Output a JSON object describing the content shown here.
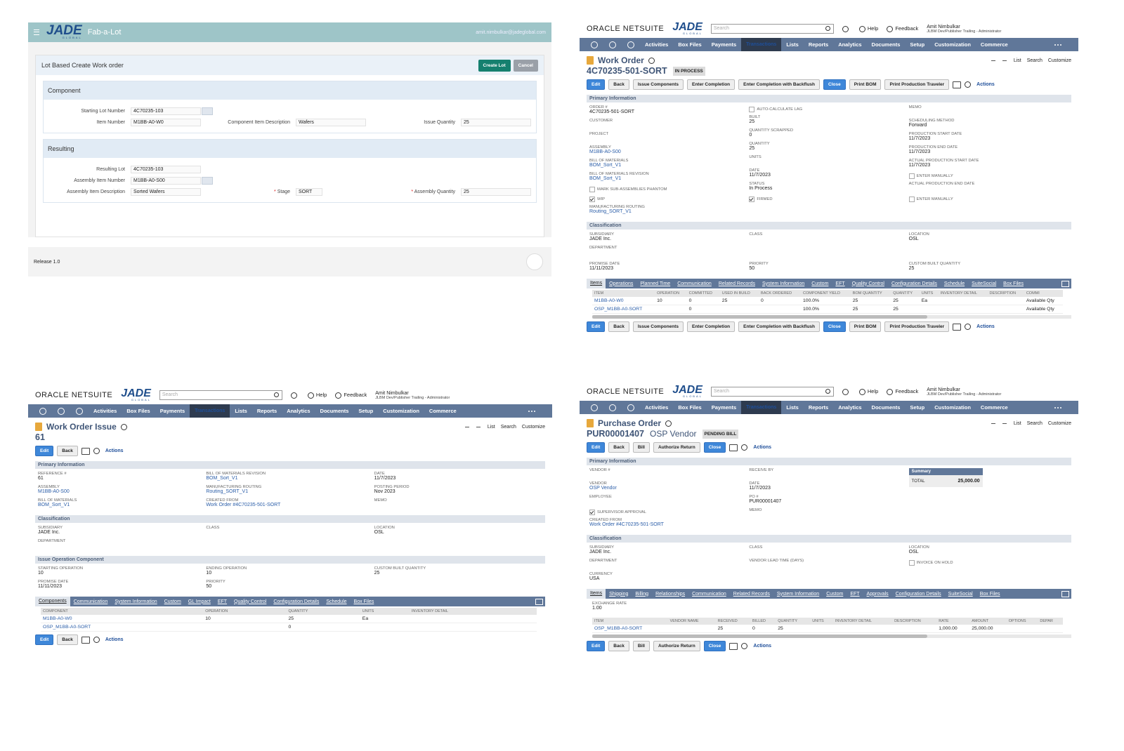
{
  "fab_a_lot": {
    "logo": "JADE",
    "logo_sub": "GLOBAL",
    "app_title": "Fab-a-Lot",
    "user": "amit.nimbulkar@jadeglobal.com",
    "form_title": "Lot Based Create Work order",
    "buttons": [
      "Create Lot",
      "Cancel"
    ],
    "sections": [
      {
        "title": "Component",
        "rows": [
          [
            {
              "label": "Starting Lot Number",
              "value": "4C70235-103",
              "control": "list"
            }
          ],
          [
            {
              "label": "Item Number",
              "value": "M1BB-A0-W0"
            },
            {
              "label": "Component Item Description",
              "value": "Wafers"
            },
            {
              "label": "Issue Quantity",
              "value": "25"
            }
          ]
        ]
      },
      {
        "title": "Resulting",
        "rows": [
          [
            {
              "label": "Resulting Lot",
              "value": "4C70235-103"
            }
          ],
          [
            {
              "label": "Assembly Item Number",
              "value": "M1BB-A0-S00",
              "control": "dropdown"
            }
          ],
          [
            {
              "label": "Assembly Item Description",
              "value": "Sorted Wafers"
            },
            {
              "label": "Stage",
              "value": "SORT",
              "control": "select",
              "required": true
            },
            {
              "label": "Assembly Quantity",
              "value": "25",
              "required": true
            }
          ]
        ]
      }
    ],
    "footer": "Release 1.0"
  },
  "netsuite_header": {
    "brand": "ORACLE NETSUITE",
    "logo": "JADE",
    "logo_sub": "GLOBAL",
    "search_placeholder": "Search",
    "help": "Help",
    "feedback": "Feedback",
    "user_name": "Amit Nimbulkar",
    "user_role": "JLBM Dev/Publisher Trailing - Administrator",
    "nav": [
      "Activities",
      "Box Files",
      "Payments",
      "Transactions",
      "Lists",
      "Reports",
      "Analytics",
      "Documents",
      "Setup",
      "Customization",
      "Commerce"
    ],
    "links": [
      "List",
      "Search",
      "Customize"
    ],
    "actions": "Actions"
  },
  "work_order": {
    "record_type": "Work Order",
    "record_id": "4C70235-501-SORT",
    "status": "IN PROCESS",
    "buttons": [
      {
        "label": "Edit",
        "primary": true
      },
      {
        "label": "Back"
      },
      {
        "label": "Issue Components"
      },
      {
        "label": "Enter Completion"
      },
      {
        "label": "Enter Completion with Backflush"
      },
      {
        "label": "Close",
        "primary": true
      },
      {
        "label": "Print BOM"
      },
      {
        "label": "Print Production Traveler"
      }
    ],
    "sections": [
      {
        "title": "Primary Information",
        "columns": [
          [
            {
              "label": "ORDER #",
              "value": "4C70235-501-SORT"
            },
            {
              "label": "CUSTOMER"
            },
            {
              "label": "PROJECT"
            },
            {
              "label": "ASSEMBLY",
              "value": "M1BB-A0-S00",
              "link": true
            },
            {
              "label": "BILL OF MATERIALS",
              "value": "BOM_Sort_V1",
              "link": true
            },
            {
              "label": "BILL OF MATERIALS REVISION",
              "value": "BOM_Sort_V1",
              "link": true
            },
            {
              "label": "MARK SUB-ASSEMBLIES PHANTOM",
              "checkbox": true
            },
            {
              "label": "WIP",
              "checkbox": true,
              "checked": true
            },
            {
              "label": "MANUFACTURING ROUTING",
              "value": "Routing_SORT_V1",
              "link": true
            }
          ],
          [
            {
              "label": "AUTO-CALCULATE LAG",
              "checkbox": true
            },
            {
              "label": "BUILT",
              "value": "25"
            },
            {
              "label": "QUANTITY SCRAPPED",
              "value": "0"
            },
            {
              "label": "QUANTITY",
              "value": "25"
            },
            {
              "label": "UNITS"
            },
            {
              "label": "DATE",
              "value": "11/7/2023"
            },
            {
              "label": "STATUS",
              "value": "In Process"
            },
            {
              "label": "FIRMED",
              "checkbox": true,
              "checked": true
            }
          ],
          [
            {
              "label": "MEMO"
            },
            {
              "label": "SCHEDULING METHOD",
              "value": "Forward"
            },
            {
              "label": "PRODUCTION START DATE",
              "value": "11/7/2023"
            },
            {
              "label": "PRODUCTION END DATE",
              "value": "11/7/2023"
            },
            {
              "label": "ACTUAL PRODUCTION START DATE",
              "value": "11/7/2023"
            },
            {
              "label": "ENTER MANUALLY",
              "checkbox": true
            },
            {
              "label": "ACTUAL PRODUCTION END DATE"
            },
            {
              "label": "ENTER MANUALLY",
              "checkbox": true
            }
          ]
        ]
      },
      {
        "title": "Classification",
        "columns": [
          [
            {
              "label": "SUBSIDIARY",
              "value": "JADE Inc."
            },
            {
              "label": "DEPARTMENT"
            }
          ],
          [
            {
              "label": "CLASS"
            }
          ],
          [
            {
              "label": "LOCATION",
              "value": "OSL"
            }
          ]
        ]
      },
      {
        "columns": [
          [
            {
              "label": "PROMISE DATE",
              "value": "11/11/2023"
            }
          ],
          [
            {
              "label": "PRIORITY",
              "value": "50"
            }
          ],
          [
            {
              "label": "CUSTOM BUILT QUANTITY",
              "value": "25"
            }
          ]
        ]
      }
    ],
    "tabs": [
      "Items",
      "Operations",
      "Planned Time",
      "Communication",
      "Related Records",
      "System Information",
      "Custom",
      "EFT",
      "Quality Control",
      "Configuration Details",
      "Schedule",
      "SuiteSocial",
      "Box Files"
    ],
    "table": {
      "headers": [
        "ITEM",
        "OPERATION",
        "COMMITTED",
        "USED IN BUILD",
        "BACK ORDERED",
        "COMPONENT YIELD",
        "BOM QUANTITY",
        "QUANTITY",
        "UNITS",
        "INVENTORY DETAIL",
        "DESCRIPTION",
        "COMMI"
      ],
      "rows": [
        [
          "M1BB-A0-W0",
          "10",
          "0",
          "25",
          "0",
          "100.0%",
          "25",
          "25",
          "Ea",
          null,
          null,
          "Available Qty"
        ],
        [
          "OSP_M1BB-A0-SORT",
          null,
          "0",
          null,
          null,
          "100.0%",
          "25",
          "25",
          null,
          null,
          null,
          "Available Qty"
        ]
      ]
    }
  },
  "work_order_issue": {
    "record_type": "Work Order Issue",
    "record_id": "61",
    "buttons": [
      {
        "label": "Edit",
        "primary": true
      },
      {
        "label": "Back"
      }
    ],
    "sections": [
      {
        "title": "Primary Information",
        "columns": [
          [
            {
              "label": "REFERENCE #",
              "value": "61"
            },
            {
              "label": "ASSEMBLY",
              "value": "M1BB-A0-S00",
              "link": true
            },
            {
              "label": "BILL OF MATERIALS",
              "value": "BOM_Sort_V1",
              "link": true
            }
          ],
          [
            {
              "label": "BILL OF MATERIALS REVISION",
              "value": "BOM_Sort_V1",
              "link": true
            },
            {
              "label": "MANUFACTURING ROUTING",
              "value": "Routing_SORT_V1",
              "link": true
            },
            {
              "label": "CREATED FROM",
              "value": "Work Order #4C70235-501-SORT",
              "link": true
            }
          ],
          [
            {
              "label": "DATE",
              "value": "11/7/2023"
            },
            {
              "label": "POSTING PERIOD",
              "value": "Nov 2023"
            },
            {
              "label": "MEMO"
            }
          ]
        ]
      },
      {
        "title": "Classification",
        "columns": [
          [
            {
              "label": "SUBSIDIARY",
              "value": "JADE Inc."
            },
            {
              "label": "DEPARTMENT"
            }
          ],
          [
            {
              "label": "CLASS"
            }
          ],
          [
            {
              "label": "LOCATION",
              "value": "OSL"
            }
          ]
        ]
      },
      {
        "title": "Issue Operation Component",
        "columns": [
          [
            {
              "label": "STARTING OPERATION",
              "value": "10"
            },
            {
              "label": "PROMISE DATE",
              "value": "11/11/2023"
            }
          ],
          [
            {
              "label": "ENDING OPERATION",
              "value": "10"
            },
            {
              "label": "PRIORITY",
              "value": "50"
            }
          ],
          [
            {
              "label": "CUSTOM BUILT QUANTITY",
              "value": "25"
            }
          ]
        ]
      }
    ],
    "tabs": [
      "Components",
      "Communication",
      "System Information",
      "Custom",
      "GL Impact",
      "EFT",
      "Quality Control",
      "Configuration Details",
      "Schedule",
      "Box Files"
    ],
    "table": {
      "headers": [
        "COMPONENT",
        "OPERATION",
        "QUANTITY",
        "UNITS",
        "INVENTORY DETAIL"
      ],
      "rows": [
        [
          "M1BB-A0-W0",
          "10",
          "25",
          "Ea",
          null
        ],
        [
          "OSP_M1BB-A0-SORT",
          null,
          "0",
          null,
          null
        ]
      ]
    }
  },
  "purchase_order": {
    "record_type": "Purchase Order",
    "record_id": "PUR00001407",
    "entity": "OSP Vendor",
    "status": "PENDING BILL",
    "buttons": [
      {
        "label": "Edit",
        "primary": true
      },
      {
        "label": "Back"
      },
      {
        "label": "Bill"
      },
      {
        "label": "Authorize Return"
      },
      {
        "label": "Close",
        "primary": true
      }
    ],
    "summary": {
      "title": "Summary",
      "label": "TOTAL",
      "value": "25,000.00"
    },
    "sections": [
      {
        "title": "Primary Information",
        "columns": [
          [
            {
              "label": "VENDOR #"
            },
            {
              "label": "VENDOR",
              "value": "OSP Vendor",
              "link": true
            },
            {
              "label": "EMPLOYEE"
            },
            {
              "label": "SUPERVISOR APPROVAL",
              "checkbox": true,
              "checked": true
            },
            {
              "label": "CREATED FROM",
              "value": "Work Order #4C70235-501-SORT",
              "link": true
            }
          ],
          [
            {
              "label": "RECEIVE BY"
            },
            {
              "label": "DATE",
              "value": "11/7/2023"
            },
            {
              "label": "PO #",
              "value": "PUR00001407"
            },
            {
              "label": "MEMO"
            }
          ],
          []
        ]
      },
      {
        "title": "Classification",
        "columns": [
          [
            {
              "label": "SUBSIDIARY",
              "value": "JADE Inc."
            },
            {
              "label": "DEPARTMENT"
            },
            {
              "label": "CURRENCY",
              "value": "USA"
            }
          ],
          [
            {
              "label": "CLASS"
            },
            {
              "label": "VENDOR LEAD TIME (DAYS)"
            }
          ],
          [
            {
              "label": "LOCATION",
              "value": "OSL"
            },
            {
              "label": "INVOICE ON HOLD",
              "checkbox": true
            }
          ]
        ]
      }
    ],
    "tabs": [
      "Items",
      "Shipping",
      "Billing",
      "Relationships",
      "Communication",
      "Related Records",
      "System Information",
      "Custom",
      "EFT",
      "Approvals",
      "Configuration Details",
      "SuiteSocial",
      "Box Files"
    ],
    "tab_fields": [
      {
        "label": "EXCHANGE RATE",
        "value": "1.00"
      }
    ],
    "table": {
      "headers": [
        "ITEM",
        "VENDOR NAME",
        "RECEIVED",
        "BILLED",
        "QUANTITY",
        "UNITS",
        "INVENTORY DETAIL",
        "DESCRIPTION",
        "RATE",
        "AMOUNT",
        "OPTIONS",
        "DEPAR"
      ],
      "rows": [
        [
          "OSP_M1BB-A0-SORT",
          null,
          "25",
          "0",
          "25",
          null,
          null,
          null,
          "1,000.00",
          "25,000.00",
          null,
          null
        ]
      ]
    }
  }
}
